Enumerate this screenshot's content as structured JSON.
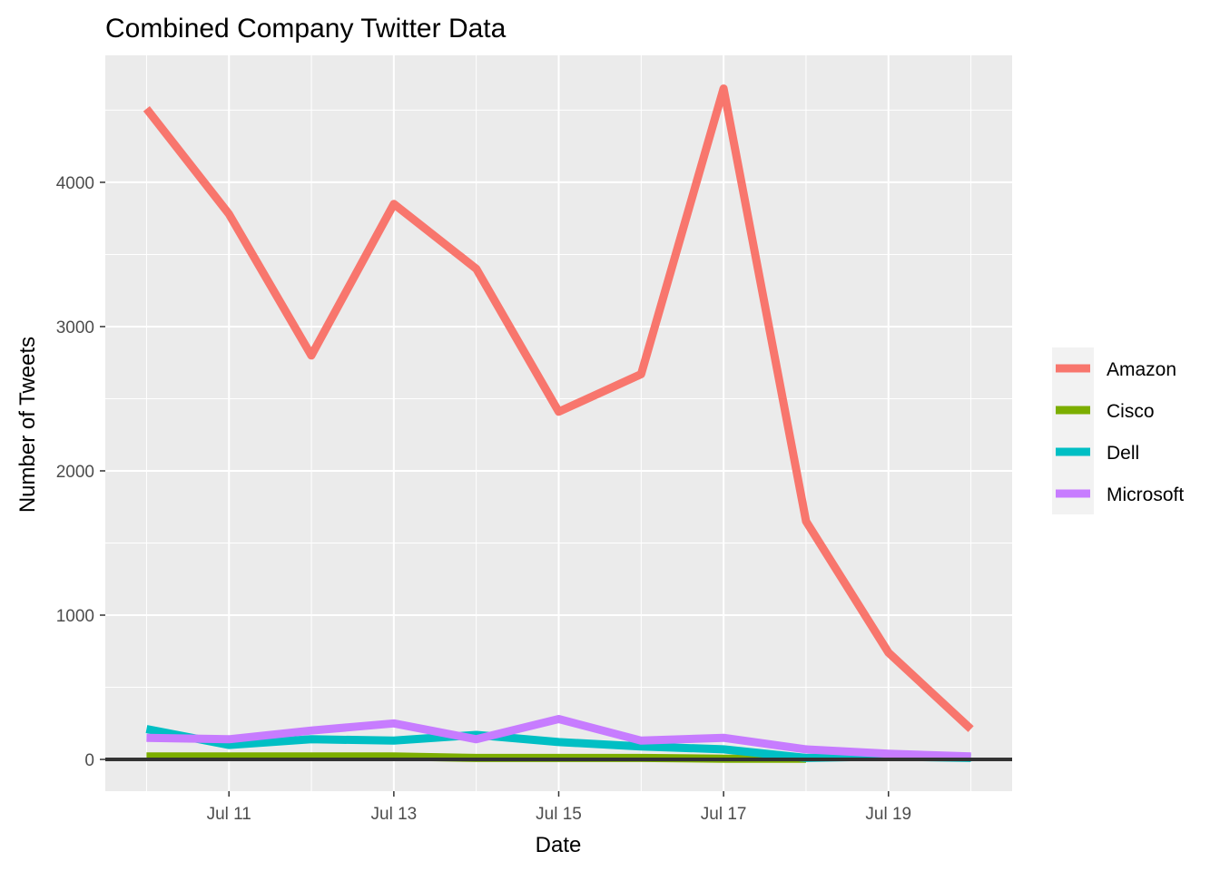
{
  "chart_data": {
    "type": "line",
    "title": "Combined Company Twitter Data",
    "xlabel": "Date",
    "ylabel": "Number of Tweets",
    "x": [
      "2019-07-10",
      "2019-07-11",
      "2019-07-12",
      "2019-07-13",
      "2019-07-14",
      "2019-07-15",
      "2019-07-16",
      "2019-07-17",
      "2019-07-18",
      "2019-07-19",
      "2019-07-20"
    ],
    "x_ticks": [
      "Jul 11",
      "Jul 13",
      "Jul 15",
      "Jul 17",
      "Jul 19"
    ],
    "y_ticks": [
      0,
      1000,
      2000,
      3000,
      4000
    ],
    "y_tick_labels": [
      "0",
      "1000",
      "2000",
      "3000",
      "4000"
    ],
    "xlim": [
      "2019-07-09T12:00",
      "2019-07-20T12:00"
    ],
    "ylim": [
      -220,
      4880
    ],
    "grid": true,
    "legend_position": "right",
    "hline_y": 0,
    "series": [
      {
        "name": "Amazon",
        "color": "#F8766D",
        "values": [
          4510,
          3780,
          2800,
          3850,
          3400,
          2410,
          2670,
          4650,
          1650,
          740,
          210
        ]
      },
      {
        "name": "Cisco",
        "color": "#7CAE00",
        "values": [
          20,
          20,
          20,
          20,
          10,
          10,
          10,
          5,
          5,
          null,
          null
        ]
      },
      {
        "name": "Dell",
        "color": "#00BFC4",
        "values": [
          210,
          100,
          140,
          130,
          170,
          120,
          90,
          70,
          10,
          20,
          10
        ]
      },
      {
        "name": "Microsoft",
        "color": "#C77CFF",
        "values": [
          150,
          140,
          200,
          250,
          140,
          280,
          130,
          150,
          70,
          40,
          20
        ]
      }
    ]
  }
}
